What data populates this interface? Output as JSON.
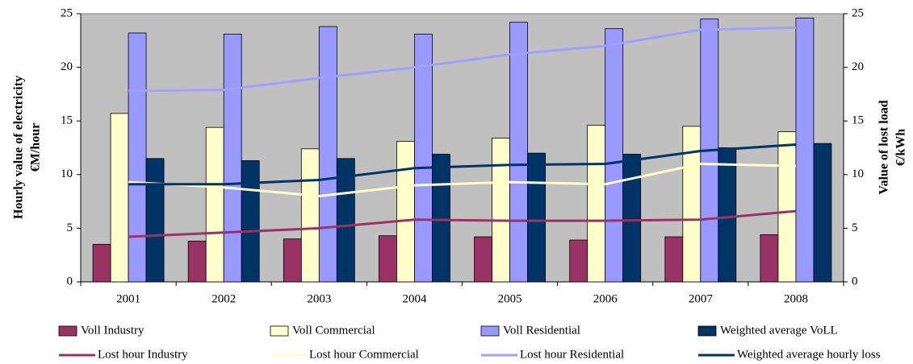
{
  "chart_data": {
    "type": "combo",
    "categories": [
      "2001",
      "2002",
      "2003",
      "2004",
      "2005",
      "2006",
      "2007",
      "2008"
    ],
    "y_label": [
      "Hourly value of electricity",
      "€M/hour"
    ],
    "y2_label": [
      "Value of lost load",
      "€/kWh"
    ],
    "ylim": [
      0,
      25
    ],
    "yticks": [
      0,
      5,
      10,
      15,
      20,
      25
    ],
    "y2lim": [
      0,
      25
    ],
    "y2ticks": [
      0,
      5,
      10,
      15,
      20,
      25
    ],
    "plot_background": "#c0c0c0",
    "grid": false,
    "series": [
      {
        "name": "Voll Industry",
        "type": "bar",
        "axis": "y2",
        "color": "#993366",
        "values": [
          3.5,
          3.8,
          4.0,
          4.3,
          4.2,
          3.9,
          4.2,
          4.4
        ]
      },
      {
        "name": "Voll Commercial",
        "type": "bar",
        "axis": "y2",
        "color": "#ffffcc",
        "values": [
          15.7,
          14.4,
          12.4,
          13.1,
          13.4,
          14.6,
          14.5,
          14.0
        ]
      },
      {
        "name": "Voll Residential",
        "type": "bar",
        "axis": "y2",
        "color": "#9999ff",
        "values": [
          23.2,
          23.1,
          23.8,
          23.1,
          24.2,
          23.6,
          24.5,
          24.6
        ]
      },
      {
        "name": "Weighted average VoLL",
        "type": "bar",
        "axis": "y2",
        "color": "#003366",
        "values": [
          11.5,
          11.3,
          11.5,
          11.9,
          12.0,
          11.9,
          12.5,
          12.9
        ]
      },
      {
        "name": "Lost hour Industry",
        "type": "line",
        "color": "#993366",
        "values": [
          4.2,
          4.6,
          5.0,
          5.8,
          5.7,
          5.7,
          5.8,
          6.6
        ]
      },
      {
        "name": "Lost hour Commercial",
        "type": "line",
        "color": "#ffffcc",
        "values": [
          9.3,
          8.8,
          8.0,
          9.0,
          9.3,
          9.1,
          11.0,
          10.8
        ]
      },
      {
        "name": "Lost hour Residential",
        "type": "line",
        "color": "#a0a0ff",
        "values": [
          17.8,
          17.9,
          19.0,
          20.0,
          21.2,
          22.0,
          23.5,
          23.7
        ]
      },
      {
        "name": "Weighted average hourly loss",
        "type": "line",
        "color": "#003366",
        "values": [
          9.1,
          9.1,
          9.5,
          10.6,
          10.9,
          11.0,
          12.2,
          12.8
        ]
      }
    ]
  }
}
